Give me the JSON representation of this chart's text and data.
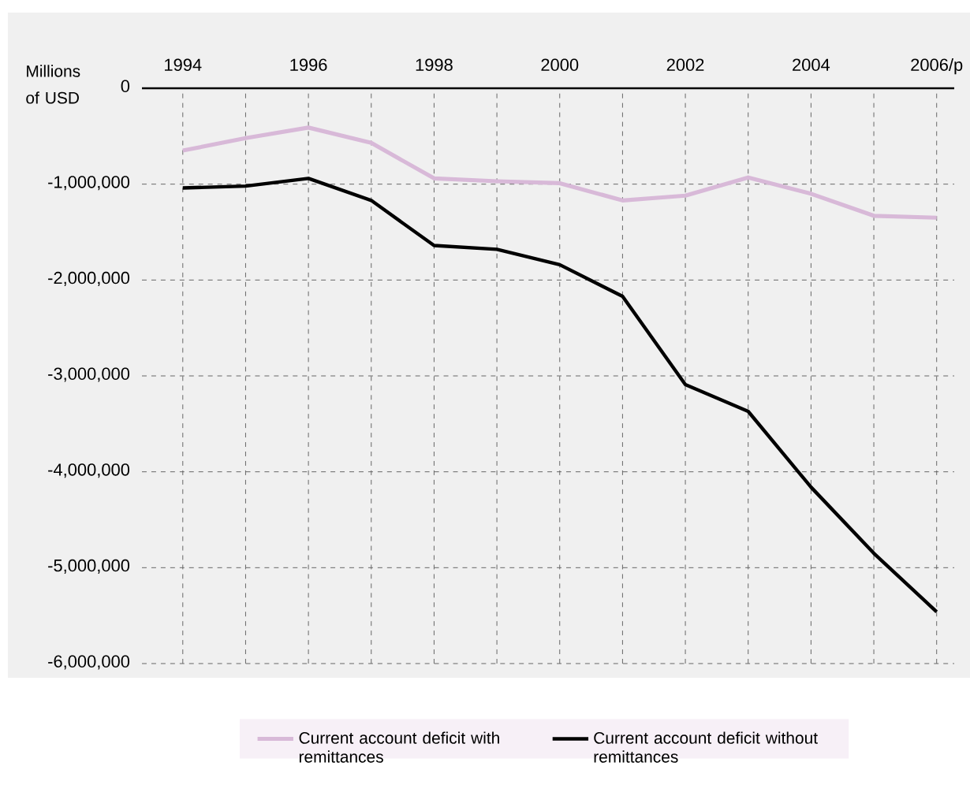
{
  "chart_data": {
    "type": "line",
    "ylabel": "Millions of USD",
    "categories": [
      "1994",
      null,
      "1996",
      null,
      "1998",
      null,
      "2000",
      null,
      "2002",
      null,
      "2004",
      null,
      "2006/p"
    ],
    "series": [
      {
        "name": "Current account deficit with remittances",
        "color": "#d8b9d8",
        "values": [
          -650000,
          -520000,
          -410000,
          -570000,
          -940000,
          -970000,
          -990000,
          -1170000,
          -1120000,
          -930000,
          -1100000,
          -1330000,
          -1350000
        ]
      },
      {
        "name": "Current account deficit without remittances",
        "color": "#000000",
        "values": [
          -1040000,
          -1020000,
          -940000,
          -1170000,
          -1640000,
          -1680000,
          -1840000,
          -2170000,
          -3090000,
          -3370000,
          -4160000,
          -4850000,
          -5460000
        ]
      }
    ],
    "ylim": [
      -6000000,
      0
    ],
    "yticks": [
      0,
      {
        "value": -1000000,
        "label": "-1,000,000"
      },
      {
        "value": -2000000,
        "label": "-2,000,000"
      },
      {
        "value": -3000000,
        "label": "-3,000,000"
      },
      {
        "value": -4000000,
        "label": "-4,000,000"
      },
      {
        "value": -5000000,
        "label": "-5,000,000"
      },
      {
        "value": -6000000,
        "label": "-6,000,000"
      }
    ],
    "grid": true,
    "legend": "bottom",
    "marker": "none",
    "line_style": "solid"
  }
}
